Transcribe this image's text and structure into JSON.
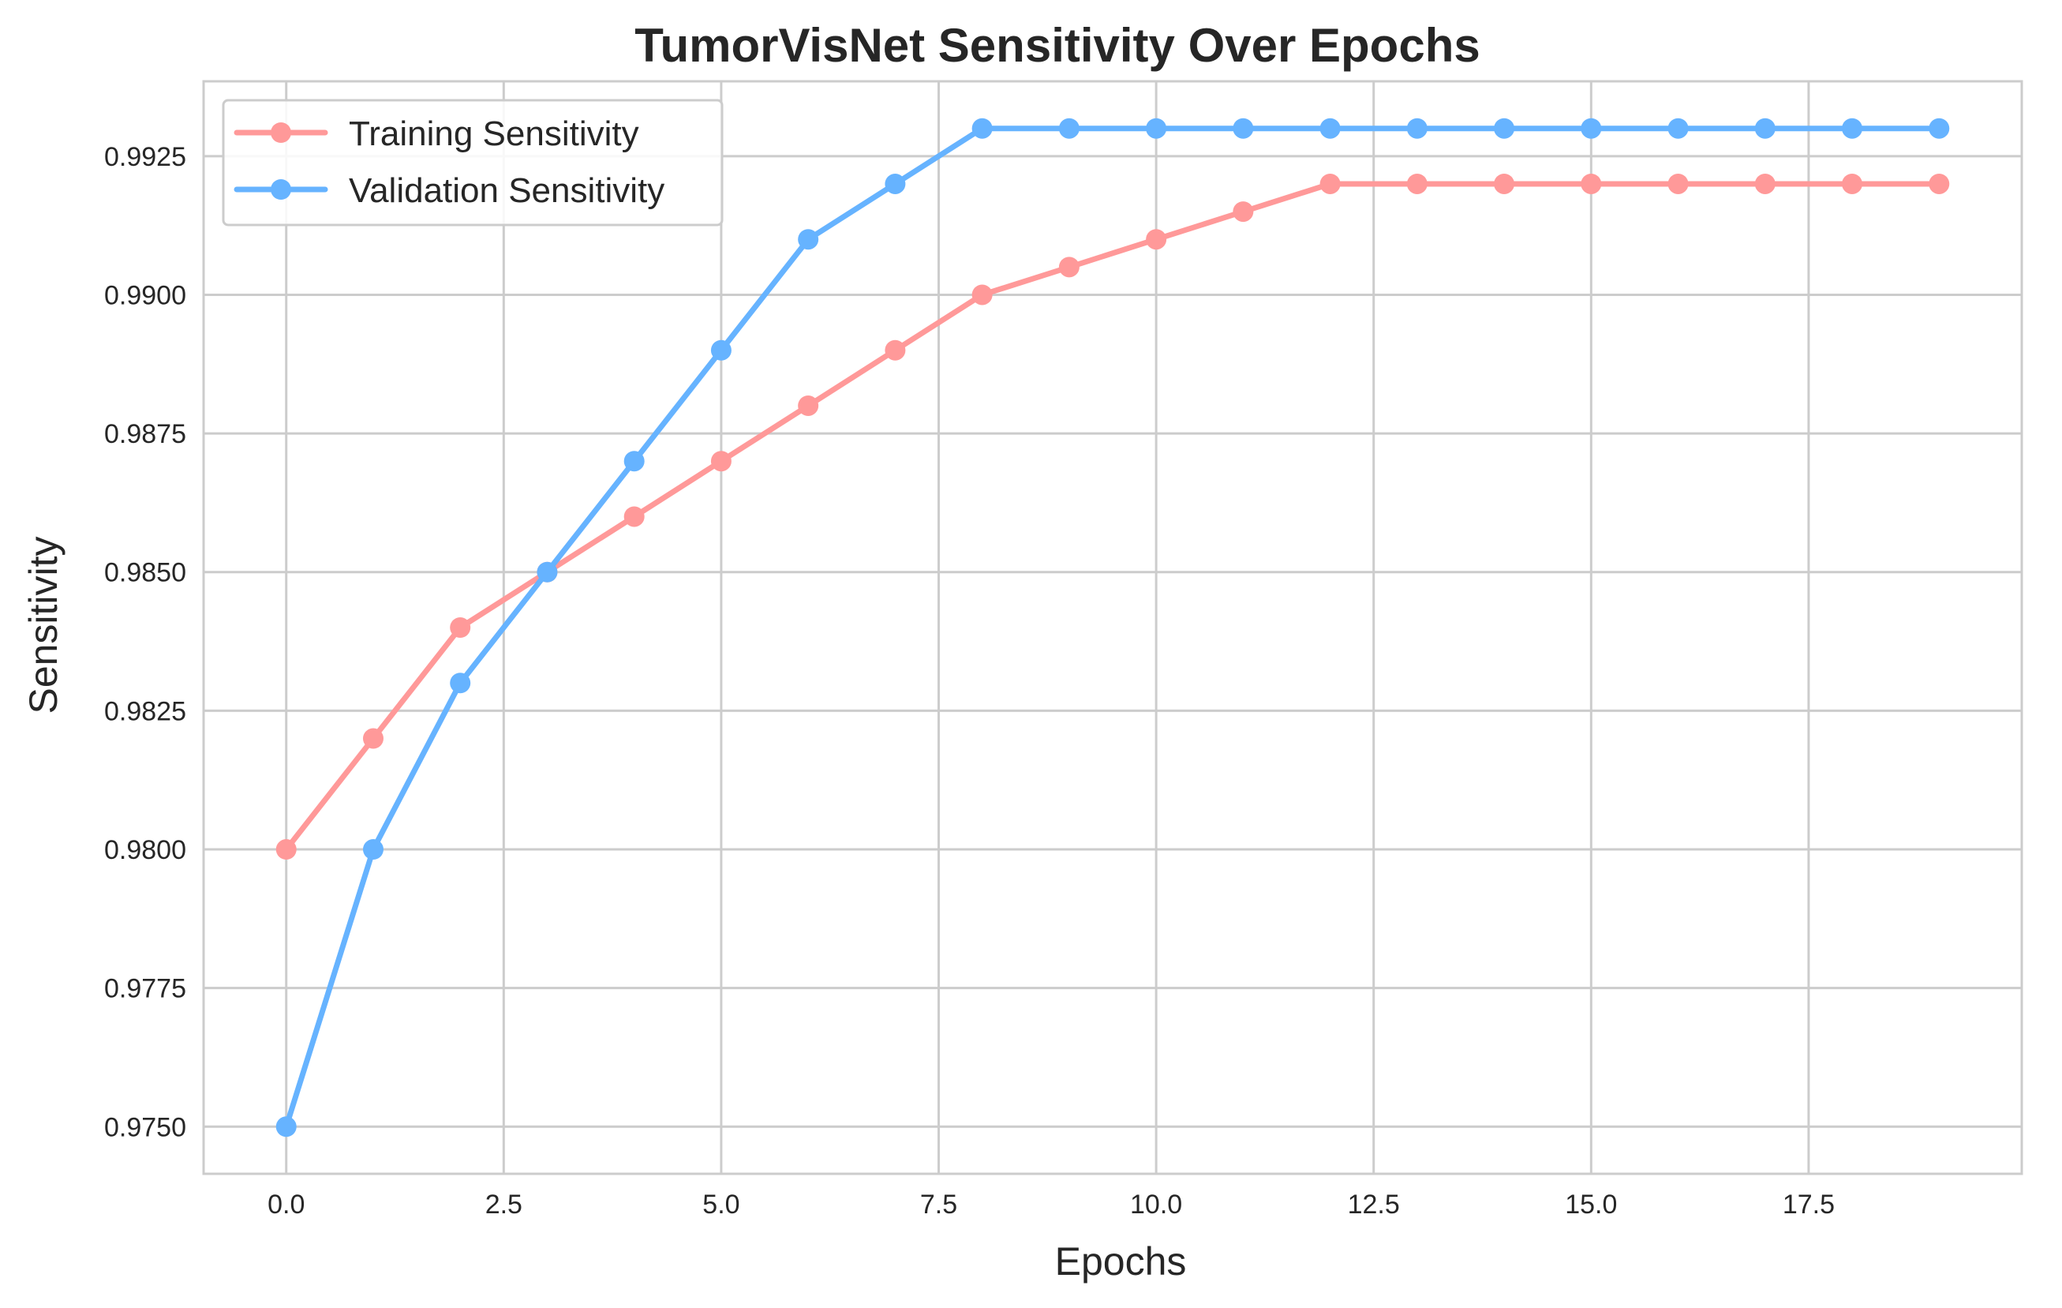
{
  "chart_data": {
    "type": "line",
    "title": "TumorVisNet Sensitivity Over Epochs",
    "xlabel": "Epochs",
    "ylabel": "Sensitivity",
    "xlim": [
      -0.95,
      19.95
    ],
    "ylim": [
      0.97415,
      0.99385
    ],
    "xticks": [
      0.0,
      2.5,
      5.0,
      7.5,
      10.0,
      12.5,
      15.0,
      17.5
    ],
    "xtick_labels": [
      "0.0",
      "2.5",
      "5.0",
      "7.5",
      "10.0",
      "12.5",
      "15.0",
      "17.5"
    ],
    "yticks": [
      0.975,
      0.9775,
      0.98,
      0.9825,
      0.985,
      0.9875,
      0.99,
      0.9925
    ],
    "ytick_labels": [
      "0.9750",
      "0.9775",
      "0.9800",
      "0.9825",
      "0.9850",
      "0.9875",
      "0.9900",
      "0.9925"
    ],
    "grid": true,
    "legend_position": "top-left",
    "x": [
      0,
      1,
      2,
      3,
      4,
      5,
      6,
      7,
      8,
      9,
      10,
      11,
      12,
      13,
      14,
      15,
      16,
      17,
      18,
      19
    ],
    "series": [
      {
        "name": "Training Sensitivity",
        "color": "#ff9999",
        "values": [
          0.98,
          0.982,
          0.984,
          0.985,
          0.986,
          0.987,
          0.988,
          0.989,
          0.99,
          0.9905,
          0.991,
          0.9915,
          0.992,
          0.992,
          0.992,
          0.992,
          0.992,
          0.992,
          0.992,
          0.992
        ]
      },
      {
        "name": "Validation Sensitivity",
        "color": "#66b3ff",
        "values": [
          0.975,
          0.98,
          0.983,
          0.985,
          0.987,
          0.989,
          0.991,
          0.992,
          0.993,
          0.993,
          0.993,
          0.993,
          0.993,
          0.993,
          0.993,
          0.993,
          0.993,
          0.993,
          0.993,
          0.993
        ]
      }
    ]
  }
}
